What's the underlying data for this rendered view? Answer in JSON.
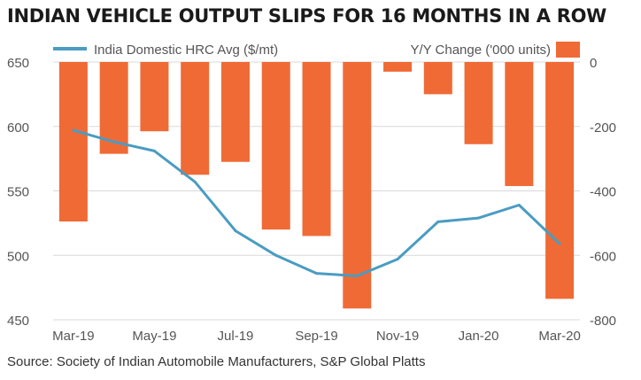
{
  "title": "INDIAN VEHICLE OUTPUT SLIPS FOR 16 MONTHS IN A ROW",
  "source": "Source: Society of Indian Automobile Manufacturers, S&P Global Platts",
  "colors": {
    "line": "#4a9cc2",
    "bar": "#f06a35",
    "grid": "#d9d9d9",
    "text": "#555555"
  },
  "chart_data": {
    "type": "bar",
    "categories": [
      "Mar-19",
      "Apr-19",
      "May-19",
      "Jun-19",
      "Jul-19",
      "Aug-19",
      "Sep-19",
      "Oct-19",
      "Nov-19",
      "Dec-19",
      "Jan-20",
      "Feb-20",
      "Mar-20"
    ],
    "x_tick_labels": [
      "Mar-19",
      "May-19",
      "Jul-19",
      "Sep-19",
      "Nov-19",
      "Jan-20",
      "Mar-20"
    ],
    "series": [
      {
        "name": "India Domestic HRC Avg ($/mt)",
        "type": "line",
        "axis": "left",
        "values": [
          597,
          588,
          581,
          557,
          519,
          500,
          486,
          484,
          497,
          526,
          529,
          539,
          509
        ]
      },
      {
        "name": "Y/Y Change ('000 units)",
        "type": "bar",
        "axis": "right",
        "values": [
          -495,
          -285,
          -215,
          -350,
          -310,
          -520,
          -540,
          -765,
          -30,
          -100,
          -255,
          -385,
          -735
        ]
      }
    ],
    "y_left": {
      "min": 450,
      "max": 650,
      "ticks": [
        450,
        500,
        550,
        600,
        650
      ]
    },
    "y_right": {
      "min": -800,
      "max": 0,
      "ticks": [
        0,
        -200,
        -400,
        -600,
        -800
      ]
    },
    "grid": true,
    "legend": "top"
  }
}
